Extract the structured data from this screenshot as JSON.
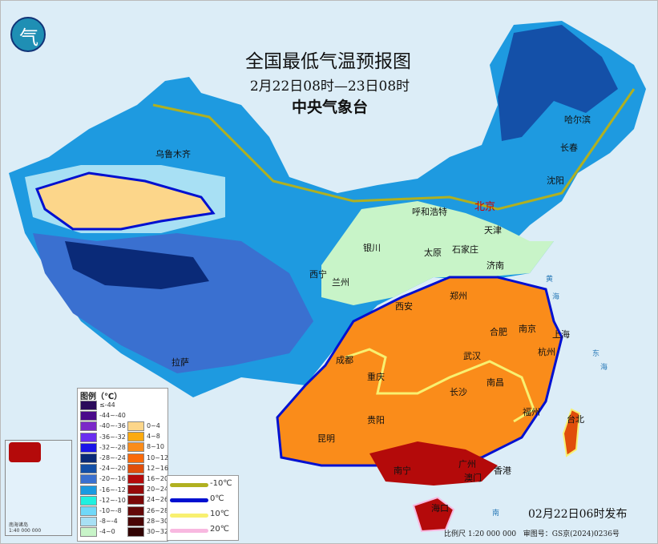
{
  "header": {
    "title": "全国最低气温预报图",
    "period": "2月22日08时—23日08时",
    "issuer": "中央气象台"
  },
  "legend": {
    "title": "图例（℃）",
    "col1": [
      {
        "label": "≤-44",
        "color": "#2a0a5a"
      },
      {
        "label": "-44~-40",
        "color": "#4a0a8a"
      },
      {
        "label": "-40~-36",
        "color": "#7b28c8"
      },
      {
        "label": "-36~-32",
        "color": "#6a2ef0"
      },
      {
        "label": "-32~-28",
        "color": "#1a14e8"
      },
      {
        "label": "-28~-24",
        "color": "#0a2a78"
      },
      {
        "label": "-24~-20",
        "color": "#1450a8"
      },
      {
        "label": "-20~-16",
        "color": "#3a70d0"
      },
      {
        "label": "-16~-12",
        "color": "#1a9ae0"
      },
      {
        "label": "-12~-10",
        "color": "#20f0e0"
      },
      {
        "label": "-10~-8",
        "color": "#70d8f8"
      },
      {
        "label": "-8~-4",
        "color": "#a8e0f4"
      },
      {
        "label": "-4~0",
        "color": "#c8f4c8"
      }
    ],
    "col2": [
      {
        "label": "0~4",
        "color": "#fcd68a"
      },
      {
        "label": "4~8",
        "color": "#fcaa10"
      },
      {
        "label": "8~10",
        "color": "#fa8c1a"
      },
      {
        "label": "10~12",
        "color": "#fa6a0a"
      },
      {
        "label": "12~16",
        "color": "#e04e0a"
      },
      {
        "label": "16~20",
        "color": "#b40a0a"
      },
      {
        "label": "20~24",
        "color": "#960a0a"
      },
      {
        "label": "24~26",
        "color": "#7a0808"
      },
      {
        "label": "26~28",
        "color": "#640808"
      },
      {
        "label": "28~30",
        "color": "#4a0606"
      },
      {
        "label": "30~32",
        "color": "#320404"
      }
    ],
    "isolines": [
      {
        "label": "-10℃",
        "color": "#b0b020"
      },
      {
        "label": "0℃",
        "color": "#0010d0"
      },
      {
        "label": "10℃",
        "color": "#f8f070"
      },
      {
        "label": "20℃",
        "color": "#f8b8e0"
      }
    ]
  },
  "cities": [
    {
      "name": "乌鲁木齐"
    },
    {
      "name": "哈尔滨"
    },
    {
      "name": "长春"
    },
    {
      "name": "沈阳"
    },
    {
      "name": "北京"
    },
    {
      "name": "天津"
    },
    {
      "name": "呼和浩特"
    },
    {
      "name": "石家庄"
    },
    {
      "name": "太原"
    },
    {
      "name": "银川"
    },
    {
      "name": "西宁"
    },
    {
      "name": "兰州"
    },
    {
      "name": "济南"
    },
    {
      "name": "郑州"
    },
    {
      "name": "西安"
    },
    {
      "name": "合肥"
    },
    {
      "name": "南京"
    },
    {
      "name": "上海"
    },
    {
      "name": "杭州"
    },
    {
      "name": "武汉"
    },
    {
      "name": "成都"
    },
    {
      "name": "重庆"
    },
    {
      "name": "拉萨"
    },
    {
      "name": "长沙"
    },
    {
      "name": "南昌"
    },
    {
      "name": "福州"
    },
    {
      "name": "台北"
    },
    {
      "name": "贵阳"
    },
    {
      "name": "昆明"
    },
    {
      "name": "南宁"
    },
    {
      "name": "广州"
    },
    {
      "name": "香港"
    },
    {
      "name": "澳门"
    },
    {
      "name": "海口"
    }
  ],
  "seas": [
    "黄",
    "海",
    "东",
    "海",
    "南"
  ],
  "inset": {
    "caption": "南海诸岛",
    "scale": "1:40 000 000"
  },
  "footer": {
    "issued": "02月22日06时发布",
    "scale": "比例尺 1:20 000 000",
    "review_no": "审图号：GS京(2024)0236号"
  }
}
